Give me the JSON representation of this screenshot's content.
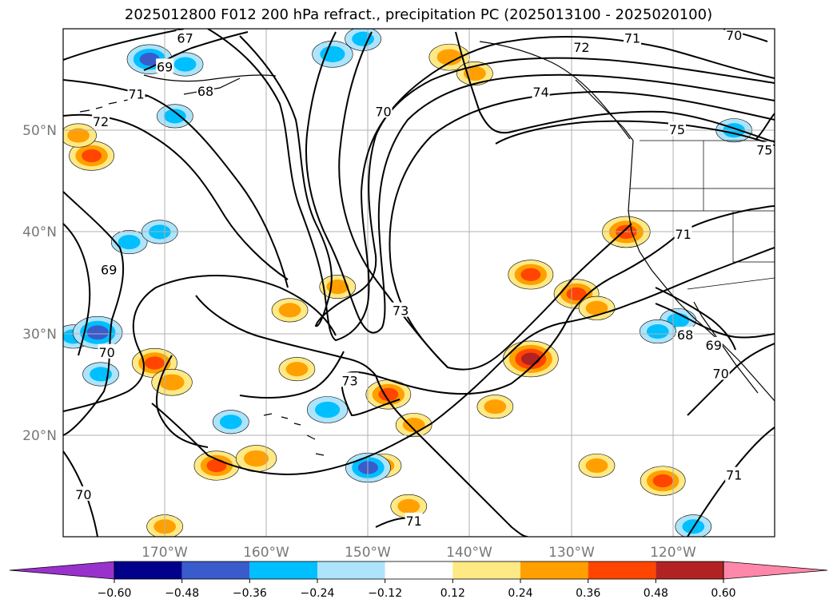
{
  "chart_data": {
    "type": "contour_map",
    "title": "2025012800 F012 200 hPa refract., precipitation PC (2025013100 - 2025020100)",
    "lat_ticks": [
      {
        "label": "50°N",
        "lat": 50
      },
      {
        "label": "40°N",
        "lat": 40
      },
      {
        "label": "30°N",
        "lat": 30
      },
      {
        "label": "20°N",
        "lat": 20
      }
    ],
    "lon_ticks": [
      {
        "label": "170°W",
        "lon": -170
      },
      {
        "label": "160°W",
        "lon": -160
      },
      {
        "label": "150°W",
        "lon": -150
      },
      {
        "label": "140°W",
        "lon": -140
      },
      {
        "label": "130°W",
        "lon": -130
      },
      {
        "label": "120°W",
        "lon": -120
      }
    ],
    "extent": {
      "lon_min": -180,
      "lon_max": -110,
      "lat_min": 10,
      "lat_max": 60
    },
    "colorbar": {
      "levels": [
        -0.6,
        -0.48,
        -0.36,
        -0.24,
        -0.12,
        0.12,
        0.24,
        0.36,
        0.48,
        0.6
      ],
      "tick_labels": [
        "−0.60",
        "−0.48",
        "−0.36",
        "−0.24",
        "−0.12",
        "0.12",
        "0.24",
        "0.36",
        "0.48",
        "0.60"
      ],
      "colors": [
        "#9932cc",
        "#00008b",
        "#3a5bcc",
        "#00bfff",
        "#ade4fb",
        "#ffffff",
        "#ffe985",
        "#ffa000",
        "#ff4500",
        "#b22222",
        "#ff88aa"
      ],
      "extend": "both"
    },
    "contour_labels": [
      {
        "text": "67",
        "lon": -168.0,
        "lat": 59.0
      },
      {
        "text": "69",
        "lon": -170.0,
        "lat": 56.2
      },
      {
        "text": "68",
        "lon": -166.0,
        "lat": 53.8
      },
      {
        "text": "71",
        "lon": -172.8,
        "lat": 53.5
      },
      {
        "text": "72",
        "lon": -176.3,
        "lat": 50.8
      },
      {
        "text": "70",
        "lon": -148.5,
        "lat": 51.8
      },
      {
        "text": "71",
        "lon": -124.0,
        "lat": 59.0
      },
      {
        "text": "70",
        "lon": -114.0,
        "lat": 59.3
      },
      {
        "text": "72",
        "lon": -129.0,
        "lat": 58.1
      },
      {
        "text": "74",
        "lon": -133.0,
        "lat": 53.7
      },
      {
        "text": "75",
        "lon": -119.6,
        "lat": 50.0
      },
      {
        "text": "75",
        "lon": -111.0,
        "lat": 48.0
      },
      {
        "text": "71",
        "lon": -119.0,
        "lat": 39.7
      },
      {
        "text": "69",
        "lon": -175.5,
        "lat": 36.2
      },
      {
        "text": "73",
        "lon": -146.8,
        "lat": 32.2
      },
      {
        "text": "70",
        "lon": -175.7,
        "lat": 28.1
      },
      {
        "text": "68",
        "lon": -118.8,
        "lat": 29.8
      },
      {
        "text": "69",
        "lon": -116.0,
        "lat": 28.8
      },
      {
        "text": "70",
        "lon": -115.3,
        "lat": 26.0
      },
      {
        "text": "73",
        "lon": -151.8,
        "lat": 25.3
      },
      {
        "text": "70",
        "lon": -178.0,
        "lat": 14.1
      },
      {
        "text": "71",
        "lon": -114.0,
        "lat": 16.0
      },
      {
        "text": "71",
        "lon": -145.5,
        "lat": 11.5
      }
    ],
    "precip_anomaly_blobs": [
      {
        "lon": -142.0,
        "lat": 57.2,
        "value": 0.3
      },
      {
        "lon": -139.5,
        "lat": 55.6,
        "value": 0.24
      },
      {
        "lon": -177.2,
        "lat": 47.5,
        "value": 0.36
      },
      {
        "lon": -178.5,
        "lat": 49.5,
        "value": 0.24
      },
      {
        "lon": -124.6,
        "lat": 40.0,
        "value": 0.4
      },
      {
        "lon": -134.0,
        "lat": 35.8,
        "value": 0.36
      },
      {
        "lon": -129.5,
        "lat": 33.9,
        "value": 0.36
      },
      {
        "lon": -127.5,
        "lat": 32.5,
        "value": 0.24
      },
      {
        "lon": -134.0,
        "lat": 27.5,
        "value": 0.5
      },
      {
        "lon": -137.5,
        "lat": 22.8,
        "value": 0.24
      },
      {
        "lon": -171.0,
        "lat": 27.1,
        "value": 0.36
      },
      {
        "lon": -169.3,
        "lat": 25.2,
        "value": 0.3
      },
      {
        "lon": -164.9,
        "lat": 17.0,
        "value": 0.36
      },
      {
        "lon": -161.0,
        "lat": 17.7,
        "value": 0.3
      },
      {
        "lon": -148.0,
        "lat": 24.0,
        "value": 0.36
      },
      {
        "lon": -145.5,
        "lat": 21.0,
        "value": 0.24
      },
      {
        "lon": -148.5,
        "lat": 17.0,
        "value": 0.24
      },
      {
        "lon": -127.5,
        "lat": 17.0,
        "value": 0.24
      },
      {
        "lon": -121.0,
        "lat": 15.5,
        "value": 0.36
      },
      {
        "lon": -146.0,
        "lat": 13.0,
        "value": 0.24
      },
      {
        "lon": -170.0,
        "lat": 11.0,
        "value": 0.24
      },
      {
        "lon": -157.0,
        "lat": 26.5,
        "value": 0.24
      },
      {
        "lon": -153.0,
        "lat": 34.6,
        "value": 0.24
      },
      {
        "lon": -157.7,
        "lat": 32.3,
        "value": 0.24
      },
      {
        "lon": -179.0,
        "lat": 29.7,
        "value": -0.24
      },
      {
        "lon": -176.6,
        "lat": 30.1,
        "value": -0.42
      },
      {
        "lon": -176.3,
        "lat": 26.0,
        "value": -0.24
      },
      {
        "lon": -171.5,
        "lat": 57.0,
        "value": -0.36
      },
      {
        "lon": -168.0,
        "lat": 56.5,
        "value": -0.24
      },
      {
        "lon": -153.5,
        "lat": 57.5,
        "value": -0.3
      },
      {
        "lon": -150.5,
        "lat": 59.0,
        "value": -0.24
      },
      {
        "lon": -169.0,
        "lat": 51.4,
        "value": -0.24
      },
      {
        "lon": -173.5,
        "lat": 39.0,
        "value": -0.24
      },
      {
        "lon": -170.5,
        "lat": 40.0,
        "value": -0.24
      },
      {
        "lon": -150.0,
        "lat": 16.8,
        "value": -0.36
      },
      {
        "lon": -154.0,
        "lat": 22.5,
        "value": -0.3
      },
      {
        "lon": -163.5,
        "lat": 21.3,
        "value": -0.24
      },
      {
        "lon": -119.5,
        "lat": 31.3,
        "value": -0.24
      },
      {
        "lon": -121.5,
        "lat": 30.2,
        "value": -0.24
      },
      {
        "lon": -114.0,
        "lat": 50.0,
        "value": -0.24
      },
      {
        "lon": -118.0,
        "lat": 11.0,
        "value": -0.24
      }
    ],
    "grid": true
  }
}
